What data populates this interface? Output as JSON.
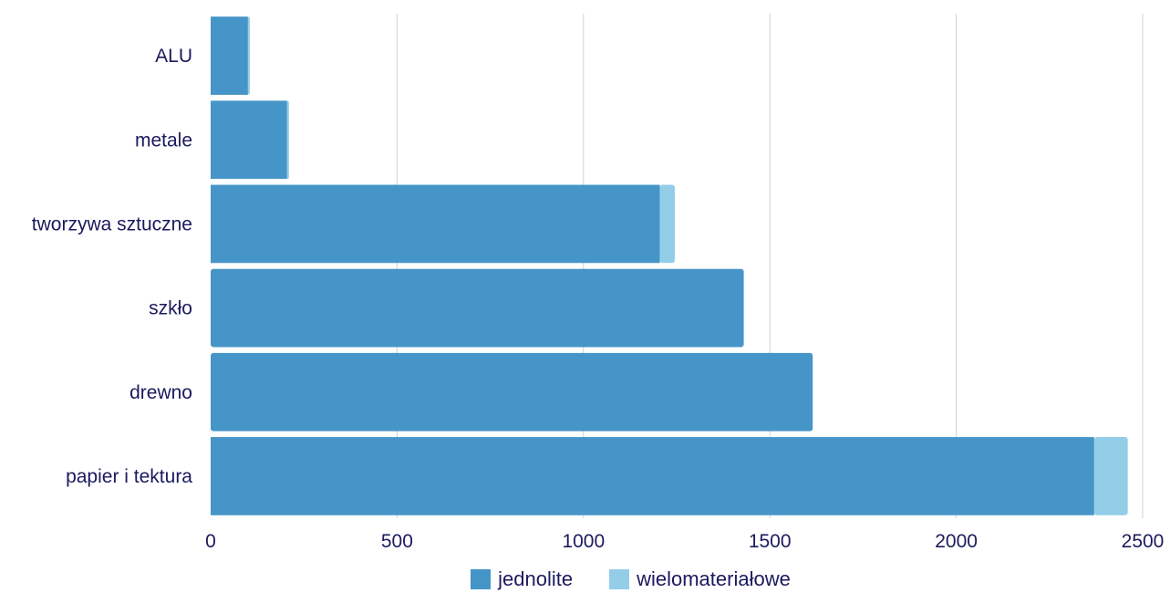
{
  "colors": {
    "jednolite": "#4695c8",
    "wielomaterialowe": "#93cde8",
    "grid": "#d0d0d8",
    "text": "#1a1a5e"
  },
  "chart_data": {
    "type": "bar",
    "orientation": "horizontal",
    "stacked": true,
    "categories": [
      "ALU",
      "metale",
      "tworzywa sztuczne",
      "szkło",
      "drewno",
      "papier i tektura"
    ],
    "series": [
      {
        "name": "jednolite",
        "values": [
          100,
          205,
          1205,
          1430,
          1615,
          2370
        ]
      },
      {
        "name": "wielomateriałowe",
        "values": [
          5,
          5,
          40,
          0,
          0,
          90
        ]
      }
    ],
    "xlim": [
      0,
      2500
    ],
    "xticks": [
      0,
      500,
      1000,
      1500,
      2000,
      2500
    ],
    "grid": true,
    "legend_position": "bottom"
  },
  "legend": {
    "series1": "jednolite",
    "series2": "wielomateriałowe"
  }
}
